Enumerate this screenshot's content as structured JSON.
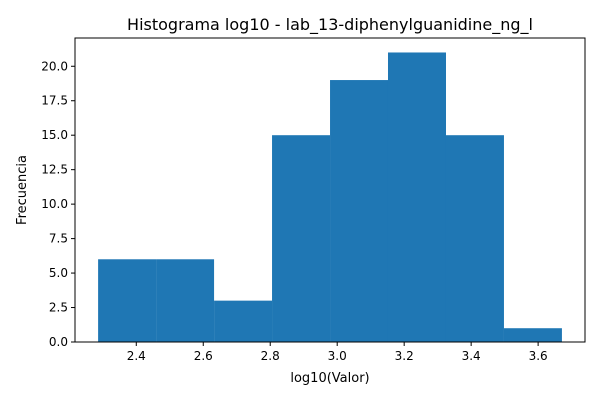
{
  "chart_data": {
    "type": "bar",
    "title": "Histograma log10 - lab_13-diphenylguanidine_ng_l",
    "xlabel": "log10(Valor)",
    "ylabel": "Frecuencia",
    "bin_edges": [
      2.286,
      2.4591,
      2.6323,
      2.8054,
      2.9786,
      3.1517,
      3.3249,
      3.498,
      3.6711
    ],
    "values": [
      6,
      6,
      3,
      15,
      19,
      21,
      15,
      1
    ],
    "xlim": [
      2.217,
      3.74
    ],
    "ylim": [
      0,
      22.05
    ],
    "xticks": [
      2.4,
      2.6,
      2.8,
      3.0,
      3.2,
      3.4,
      3.6
    ],
    "xtick_labels": [
      "2.4",
      "2.6",
      "2.8",
      "3.0",
      "3.2",
      "3.4",
      "3.6"
    ],
    "yticks": [
      0,
      2.5,
      5,
      7.5,
      10,
      12.5,
      15,
      17.5,
      20
    ],
    "ytick_labels": [
      "0.0",
      "2.5",
      "5.0",
      "7.5",
      "10.0",
      "12.5",
      "15.0",
      "17.5",
      "20.0"
    ],
    "bar_color": "#1f77b4",
    "grid": false,
    "legend": "none"
  }
}
